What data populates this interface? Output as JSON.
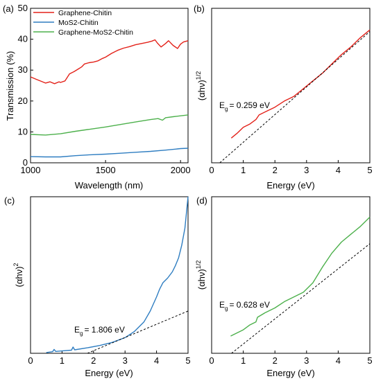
{
  "colors": {
    "red": "#e32119",
    "blue": "#2e7dc1",
    "green": "#4cb04b",
    "fit": "#000000"
  },
  "chart_data": [
    {
      "panel": "(a)",
      "type": "line",
      "xlabel": "Wavelength (nm)",
      "ylabel": "Transmission (%)",
      "xlim": [
        1000,
        2050
      ],
      "ylim": [
        0,
        50
      ],
      "xticks": [
        1000,
        1500,
        2000
      ],
      "yticks": [
        0,
        10,
        20,
        30,
        40,
        50
      ],
      "legend_position": "top-left",
      "series": [
        {
          "name": "Graphene-Chitin",
          "color": "red",
          "x": [
            1000,
            1040,
            1080,
            1100,
            1130,
            1160,
            1190,
            1200,
            1230,
            1260,
            1290,
            1320,
            1340,
            1360,
            1390,
            1420,
            1450,
            1480,
            1500,
            1540,
            1580,
            1620,
            1660,
            1700,
            1740,
            1780,
            1810,
            1830,
            1845,
            1870,
            1900,
            1920,
            1950,
            1980,
            2000,
            2020,
            2050
          ],
          "y": [
            27.8,
            27.0,
            26.2,
            25.8,
            26.2,
            25.6,
            26.2,
            26.0,
            26.5,
            28.8,
            29.5,
            30.4,
            31.0,
            32.0,
            32.4,
            32.6,
            33.0,
            33.8,
            34.2,
            35.4,
            36.4,
            37.1,
            37.6,
            38.2,
            38.6,
            39.0,
            39.4,
            39.8,
            38.8,
            37.5,
            38.6,
            39.5,
            38.0,
            37.0,
            38.4,
            39.1,
            39.5
          ]
        },
        {
          "name": "MoS2-Chitin",
          "color": "blue",
          "x": [
            1000,
            1100,
            1200,
            1300,
            1400,
            1500,
            1600,
            1700,
            1800,
            1900,
            2000,
            2050
          ],
          "y": [
            2.0,
            1.9,
            1.9,
            2.3,
            2.6,
            2.8,
            3.1,
            3.4,
            3.7,
            4.1,
            4.6,
            4.7
          ]
        },
        {
          "name": "Graphene-MoS2-Chitin",
          "color": "green",
          "x": [
            1000,
            1100,
            1200,
            1300,
            1400,
            1500,
            1600,
            1700,
            1800,
            1850,
            1880,
            1900,
            1950,
            2000,
            2050
          ],
          "y": [
            9.2,
            9.0,
            9.4,
            10.2,
            10.9,
            11.6,
            12.4,
            13.2,
            14.0,
            14.3,
            13.8,
            14.6,
            14.9,
            15.2,
            15.5
          ]
        }
      ]
    },
    {
      "panel": "(b)",
      "type": "line",
      "xlabel": "Energy (eV)",
      "ylabel": "(αhν)",
      "ylabel_sup": "1/2",
      "xlim": [
        0,
        5
      ],
      "xticks": [
        0,
        1,
        2,
        3,
        4,
        5
      ],
      "ylim": [
        0,
        1
      ],
      "annotation": {
        "text": "= 0.259 eV",
        "prefix": "E",
        "sub": "g"
      },
      "series": [
        {
          "color": "red",
          "x": [
            0.62,
            0.8,
            1.0,
            1.2,
            1.4,
            1.5,
            1.7,
            2.0,
            2.3,
            2.6,
            2.9,
            3.2,
            3.5,
            3.8,
            4.1,
            4.4,
            4.7,
            5.0
          ],
          "y": [
            0.16,
            0.19,
            0.23,
            0.25,
            0.28,
            0.31,
            0.33,
            0.36,
            0.4,
            0.43,
            0.48,
            0.53,
            0.58,
            0.64,
            0.7,
            0.75,
            0.81,
            0.86
          ]
        },
        {
          "style": "dashed",
          "color": "fit",
          "x": [
            0.259,
            5.0
          ],
          "y": [
            0.0,
            0.85
          ]
        }
      ]
    },
    {
      "panel": "(c)",
      "type": "line",
      "xlabel": "Energy (eV)",
      "ylabel": "(αhν)",
      "ylabel_sup": "2",
      "xlim": [
        0,
        5
      ],
      "xticks": [
        0,
        1,
        2,
        3,
        4,
        5
      ],
      "ylim": [
        0,
        1
      ],
      "annotation": {
        "text": "= 1.806 eV",
        "prefix": "E",
        "sub": "g"
      },
      "series": [
        {
          "color": "blue",
          "x": [
            0.5,
            0.7,
            0.75,
            0.8,
            1.0,
            1.3,
            1.35,
            1.4,
            1.8,
            2.2,
            2.6,
            3.0,
            3.3,
            3.6,
            3.8,
            4.0,
            4.1,
            4.2,
            4.35,
            4.5,
            4.6,
            4.7,
            4.8,
            4.9,
            5.0
          ],
          "y": [
            0.005,
            0.01,
            0.025,
            0.012,
            0.015,
            0.02,
            0.04,
            0.022,
            0.035,
            0.05,
            0.07,
            0.1,
            0.14,
            0.2,
            0.27,
            0.36,
            0.41,
            0.45,
            0.48,
            0.52,
            0.56,
            0.61,
            0.69,
            0.8,
            1.0
          ]
        },
        {
          "style": "dashed",
          "color": "fit",
          "x": [
            1.806,
            5.0
          ],
          "y": [
            0.0,
            0.27
          ]
        }
      ]
    },
    {
      "panel": "(d)",
      "type": "line",
      "xlabel": "Energy (eV)",
      "ylabel": "(αhν)",
      "ylabel_sup": "1/2",
      "xlim": [
        0,
        5
      ],
      "xticks": [
        0,
        1,
        2,
        3,
        4,
        5
      ],
      "ylim": [
        0,
        1
      ],
      "annotation": {
        "text": "= 0.628 eV",
        "prefix": "E",
        "sub": "g"
      },
      "series": [
        {
          "color": "green",
          "x": [
            0.6,
            0.8,
            1.0,
            1.2,
            1.4,
            1.45,
            1.7,
            2.0,
            2.3,
            2.6,
            2.9,
            3.2,
            3.5,
            3.8,
            4.1,
            4.4,
            4.7,
            5.0
          ],
          "y": [
            0.11,
            0.13,
            0.15,
            0.18,
            0.2,
            0.23,
            0.26,
            0.29,
            0.33,
            0.36,
            0.39,
            0.45,
            0.55,
            0.64,
            0.71,
            0.76,
            0.81,
            0.87
          ]
        },
        {
          "style": "dashed",
          "color": "fit",
          "x": [
            0.628,
            5.0
          ],
          "y": [
            0.0,
            0.7
          ]
        }
      ]
    }
  ]
}
